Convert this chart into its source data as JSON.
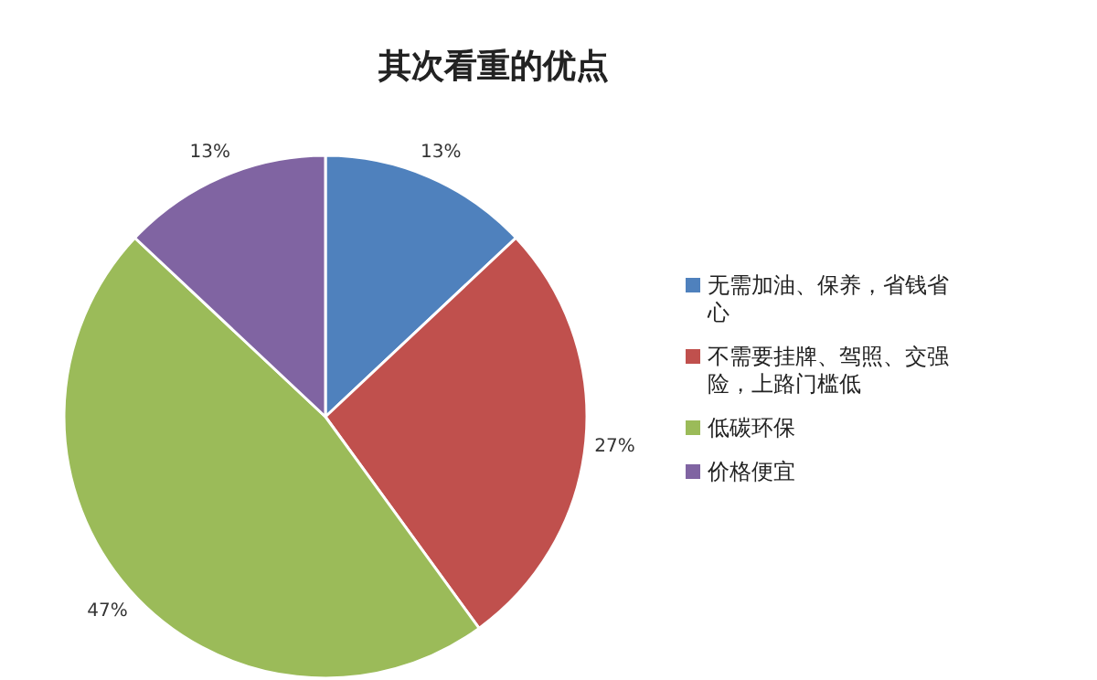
{
  "chart_data": {
    "type": "pie",
    "title": "其次看重的优点",
    "categories": [
      "无需加油、保养，省钱省心",
      "不需要挂牌、驾照、交强险，上路门槛低",
      "低碳环保",
      "价格便宜"
    ],
    "values": [
      13,
      27,
      47,
      13
    ],
    "colors": [
      "#4f81bd",
      "#c0504d",
      "#9bbb59",
      "#8064a2"
    ],
    "value_labels": [
      "13%",
      "27%",
      "47%",
      "13%"
    ],
    "legend": "right"
  }
}
